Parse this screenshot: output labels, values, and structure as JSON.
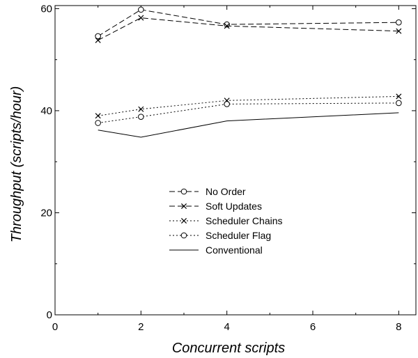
{
  "chart_data": {
    "type": "line",
    "title": "",
    "xlabel": "Concurrent scripts",
    "ylabel": "Throughput (scripts/hour)",
    "xlim": [
      0,
      8.4
    ],
    "ylim": [
      0,
      60.6
    ],
    "x_ticks": [
      0,
      2,
      4,
      6,
      8
    ],
    "y_ticks": [
      0,
      20,
      40,
      60
    ],
    "grid": false,
    "legend_position": "center",
    "series": [
      {
        "name": "No Order",
        "style": "dashed",
        "marker": "circle",
        "x": [
          1,
          2,
          4,
          8
        ],
        "y": [
          54.6,
          59.8,
          56.9,
          57.3
        ]
      },
      {
        "name": "Soft Updates",
        "style": "dashed",
        "marker": "x",
        "x": [
          1,
          2,
          4,
          8
        ],
        "y": [
          53.8,
          58.2,
          56.6,
          55.6
        ]
      },
      {
        "name": "Scheduler Chains",
        "style": "dotted",
        "marker": "x",
        "x": [
          1,
          2,
          4,
          8
        ],
        "y": [
          39.0,
          40.3,
          42.0,
          42.8
        ]
      },
      {
        "name": "Scheduler Flag",
        "style": "dotted",
        "marker": "circle",
        "x": [
          1,
          2,
          4,
          8
        ],
        "y": [
          37.6,
          38.8,
          41.3,
          41.5
        ]
      },
      {
        "name": "Conventional",
        "style": "solid",
        "marker": "none",
        "x": [
          1,
          2,
          4,
          8
        ],
        "y": [
          36.2,
          34.8,
          38.0,
          39.6
        ]
      }
    ]
  }
}
